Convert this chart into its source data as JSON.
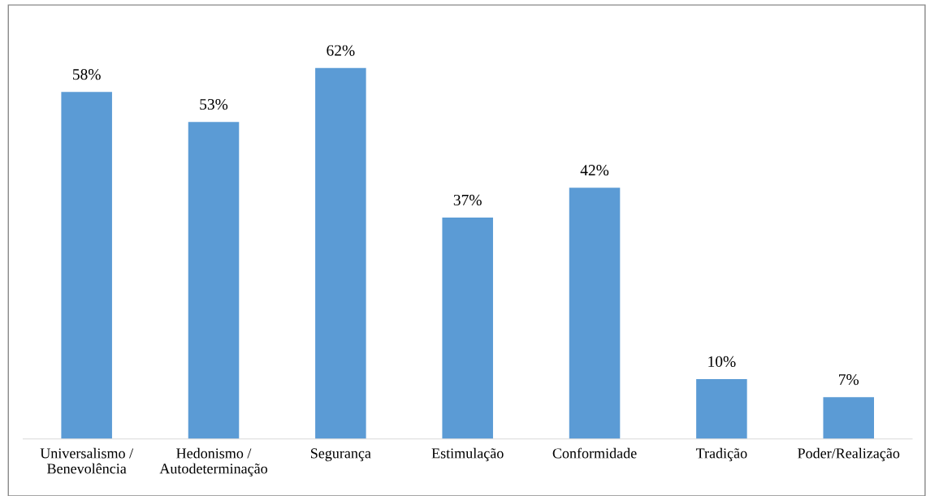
{
  "chart_data": {
    "type": "bar",
    "categories": [
      "Universalismo /\nBenevolência",
      "Hedonismo /\nAutodeterminação",
      "Segurança",
      "Estimulação",
      "Conformidade",
      "Tradição",
      "Poder/Realização"
    ],
    "values": [
      58,
      53,
      62,
      37,
      42,
      10,
      7
    ],
    "value_labels": [
      "58%",
      "53%",
      "62%",
      "37%",
      "42%",
      "10%",
      "7%"
    ],
    "color": "#5b9bd5",
    "grid": false,
    "legend": false
  }
}
